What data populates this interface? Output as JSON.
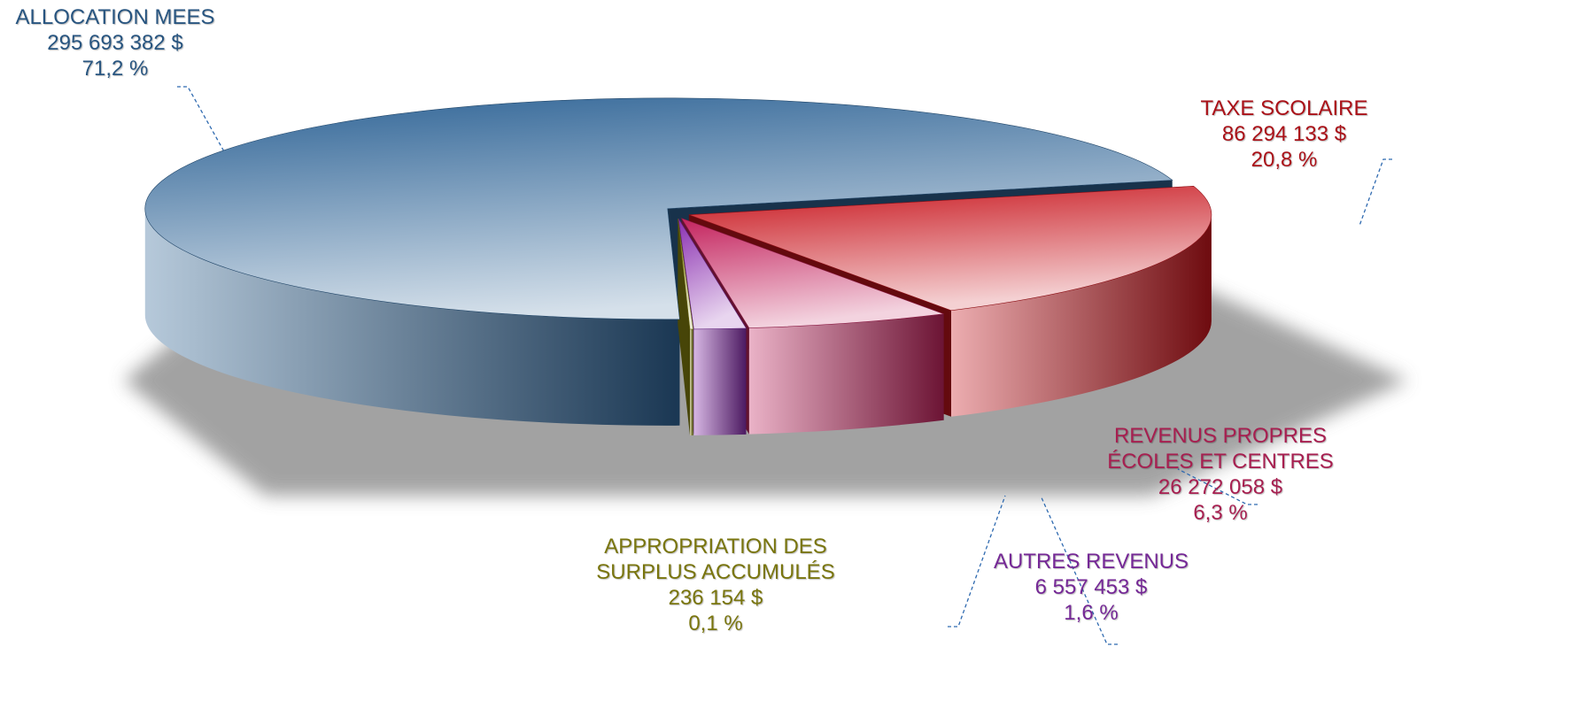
{
  "chart_data": {
    "type": "pie",
    "categories": [
      "ALLOCATION MEES",
      "TAXE SCOLAIRE",
      "REVENUS PROPRES\nÉCOLES ET CENTRES",
      "AUTRES REVENUS",
      "APPROPRIATION DES\nSURPLUS ACCUMULÉS"
    ],
    "amounts": [
      "295 693 382 $",
      "86 294 133 $",
      "26 272 058 $",
      "6 557 453 $",
      "236 154 $"
    ],
    "values": [
      71.2,
      20.8,
      6.3,
      1.6,
      0.1
    ],
    "value_labels": [
      "71,2 %",
      "20,8 %",
      "6,3 %",
      "1,6 %",
      "0,1 %"
    ],
    "colors": [
      "#2f6496",
      "#c8141c",
      "#c4245e",
      "#8a2fb0",
      "#8e8a10"
    ]
  }
}
